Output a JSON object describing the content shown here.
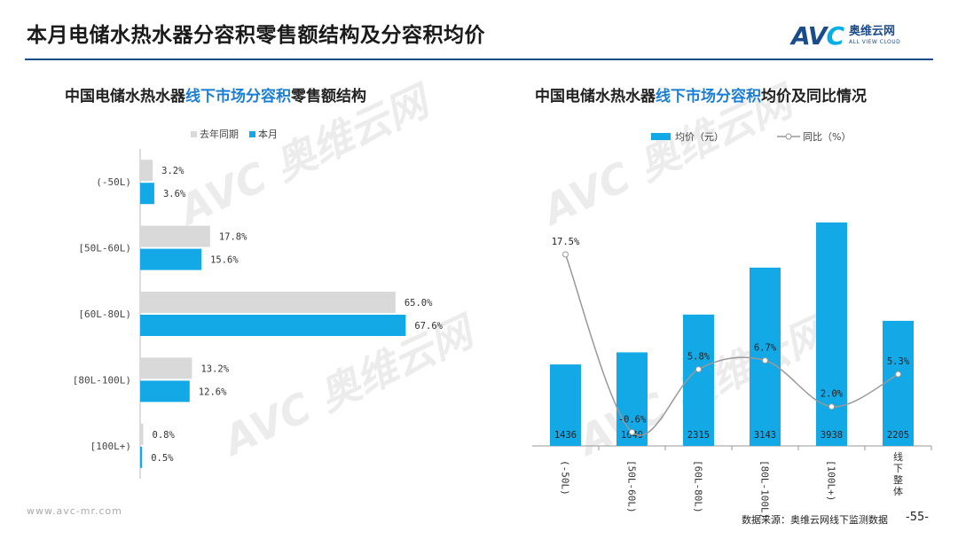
{
  "page": {
    "title": "本月电储水热水器分容积零售额结构及分容积均价",
    "logo_text": "AVC",
    "logo_cn": "奥维云网",
    "logo_en": "ALL VIEW CLOUD",
    "footer_url": "www.avc-mr.com",
    "footer_source": "数据来源：奥维云网线下监测数据",
    "page_number": "-55-",
    "colors": {
      "accent_blue": "#13a9e6",
      "gray": "#d9d9d9",
      "title_rule": "#1a4c8c",
      "highlight": "#1a7fd4"
    }
  },
  "left_chart": {
    "subtitle_pre": "中国电储水热水器",
    "subtitle_hl": "线下市场分容积",
    "subtitle_post": "零售额结构",
    "legend_prev": "去年同期",
    "legend_curr": "本月"
  },
  "right_chart": {
    "subtitle_pre": "中国电储水热水器",
    "subtitle_hl": "线下市场分容积",
    "subtitle_post": "均价及同比情况",
    "legend_bar": "均价（元）",
    "legend_line": "同比（%）"
  },
  "chart_data": [
    {
      "type": "bar",
      "orientation": "horizontal",
      "categories": [
        "(-50L)",
        "[50L-60L)",
        "[60L-80L)",
        "[80L-100L)",
        "[100L+)"
      ],
      "series": [
        {
          "name": "去年同期",
          "values": [
            3.2,
            17.8,
            65.0,
            13.2,
            0.8
          ],
          "labels": [
            "3.2%",
            "17.8%",
            "65.0%",
            "13.2%",
            "0.8%"
          ],
          "color": "#d9d9d9"
        },
        {
          "name": "本月",
          "values": [
            3.6,
            15.6,
            67.6,
            12.6,
            0.5
          ],
          "labels": [
            "3.6%",
            "15.6%",
            "67.6%",
            "12.6%",
            "0.5%"
          ],
          "color": "#13a9e6"
        }
      ],
      "xlim": [
        0,
        70
      ],
      "grid": false,
      "legend_position": "top"
    },
    {
      "type": "bar",
      "categories": [
        "(-50L)",
        "[50L-60L)",
        "[60L-80L)",
        "[80L-100L)",
        "[100L+)",
        "线下整体"
      ],
      "series": [
        {
          "name": "均价（元）",
          "type": "bar",
          "values": [
            1436,
            1649,
            2315,
            3143,
            3938,
            2205
          ],
          "labels": [
            "1436",
            "1649",
            "2315",
            "3143",
            "3938",
            "2205"
          ],
          "color": "#13a9e6"
        },
        {
          "name": "同比（%）",
          "type": "line",
          "values": [
            17.5,
            -0.6,
            5.8,
            6.7,
            2.0,
            5.3
          ],
          "labels": [
            "17.5%",
            "-0.6%",
            "5.8%",
            "6.7%",
            "2.0%",
            "5.3%"
          ],
          "color": "#999999"
        }
      ],
      "ylim": [
        0,
        4500
      ],
      "y2lim": [
        -2,
        24
      ],
      "grid": false,
      "legend_position": "top"
    }
  ]
}
